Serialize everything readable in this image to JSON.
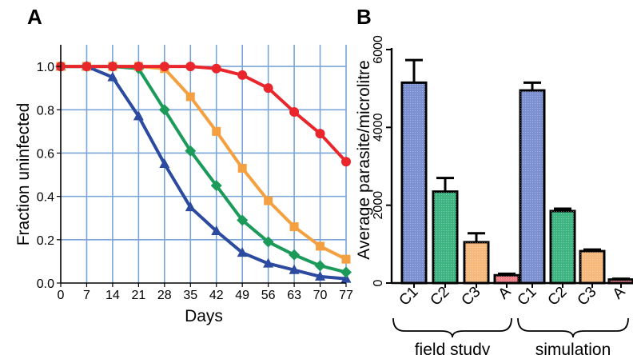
{
  "chart_data": [
    {
      "panel": "A",
      "type": "line",
      "xlabel": "Days",
      "ylabel": "Fraction  uninfected",
      "x": [
        0,
        7,
        14,
        21,
        28,
        35,
        42,
        49,
        56,
        63,
        70,
        77
      ],
      "xlim": [
        0,
        77
      ],
      "ylim": [
        0,
        1.1
      ],
      "yticks": [
        "0.0",
        "0.2",
        "0.4",
        "0.6",
        "0.8",
        "1.0"
      ],
      "grid": true,
      "series": [
        {
          "color": "#e8262b",
          "marker": "circle",
          "values": [
            1.0,
            1.0,
            1.0,
            1.0,
            1.0,
            1.0,
            0.99,
            0.96,
            0.9,
            0.79,
            0.69,
            0.56
          ]
        },
        {
          "color": "#f5a040",
          "marker": "square",
          "values": [
            1.0,
            1.0,
            1.0,
            1.0,
            0.99,
            0.86,
            0.7,
            0.53,
            0.38,
            0.26,
            0.17,
            0.11
          ]
        },
        {
          "color": "#1b9a5a",
          "marker": "diamond",
          "values": [
            1.0,
            1.0,
            1.0,
            0.99,
            0.8,
            0.61,
            0.45,
            0.29,
            0.19,
            0.13,
            0.08,
            0.05
          ]
        },
        {
          "color": "#2b4aa0",
          "marker": "triangle",
          "values": [
            1.0,
            1.0,
            0.95,
            0.77,
            0.55,
            0.35,
            0.24,
            0.14,
            0.09,
            0.06,
            0.03,
            0.02
          ]
        }
      ]
    },
    {
      "panel": "B",
      "type": "bar",
      "ylabel": "Average  parasite/microlitre",
      "ylim": [
        0,
        6000
      ],
      "yticks": [
        "0",
        "2000",
        "4000",
        "6000"
      ],
      "categories": [
        "C1",
        "C2",
        "C3",
        "A",
        "C1",
        "C2",
        "C3",
        "A"
      ],
      "groups": [
        "field study",
        "simulation"
      ],
      "values": [
        5150,
        2350,
        1050,
        200,
        4950,
        1850,
        820,
        90
      ],
      "errors": [
        580,
        350,
        230,
        40,
        200,
        60,
        40,
        20
      ],
      "colors": [
        "#7b8fd1",
        "#3db482",
        "#f7b87c",
        "#f07d86",
        "#7b8fd1",
        "#3db482",
        "#f7b87c",
        "#f07d86"
      ]
    }
  ]
}
